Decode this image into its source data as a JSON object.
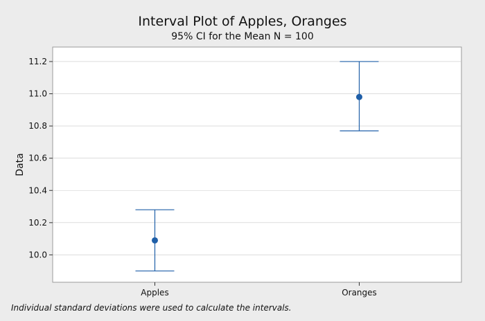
{
  "chart_data": {
    "type": "interval",
    "title": "Interval Plot of Apples, Oranges",
    "subtitle": "95% CI for the Mean  N = 100",
    "xlabel": "",
    "ylabel": "Data",
    "categories": [
      "Apples",
      "Oranges"
    ],
    "means": [
      10.09,
      10.98
    ],
    "lower": [
      9.9,
      10.77
    ],
    "upper": [
      10.28,
      11.2
    ],
    "ylim": [
      9.83,
      11.29
    ],
    "yticks": [
      "10.0",
      "10.2",
      "10.4",
      "10.6",
      "10.8",
      "11.0",
      "11.2"
    ],
    "footnote": "Individual standard deviations were used to calculate the intervals.",
    "colors": {
      "series": "#1f5fa8",
      "plot_bg": "#ffffff",
      "page_bg": "#ececec",
      "gridline": "#c8c8c8"
    }
  }
}
